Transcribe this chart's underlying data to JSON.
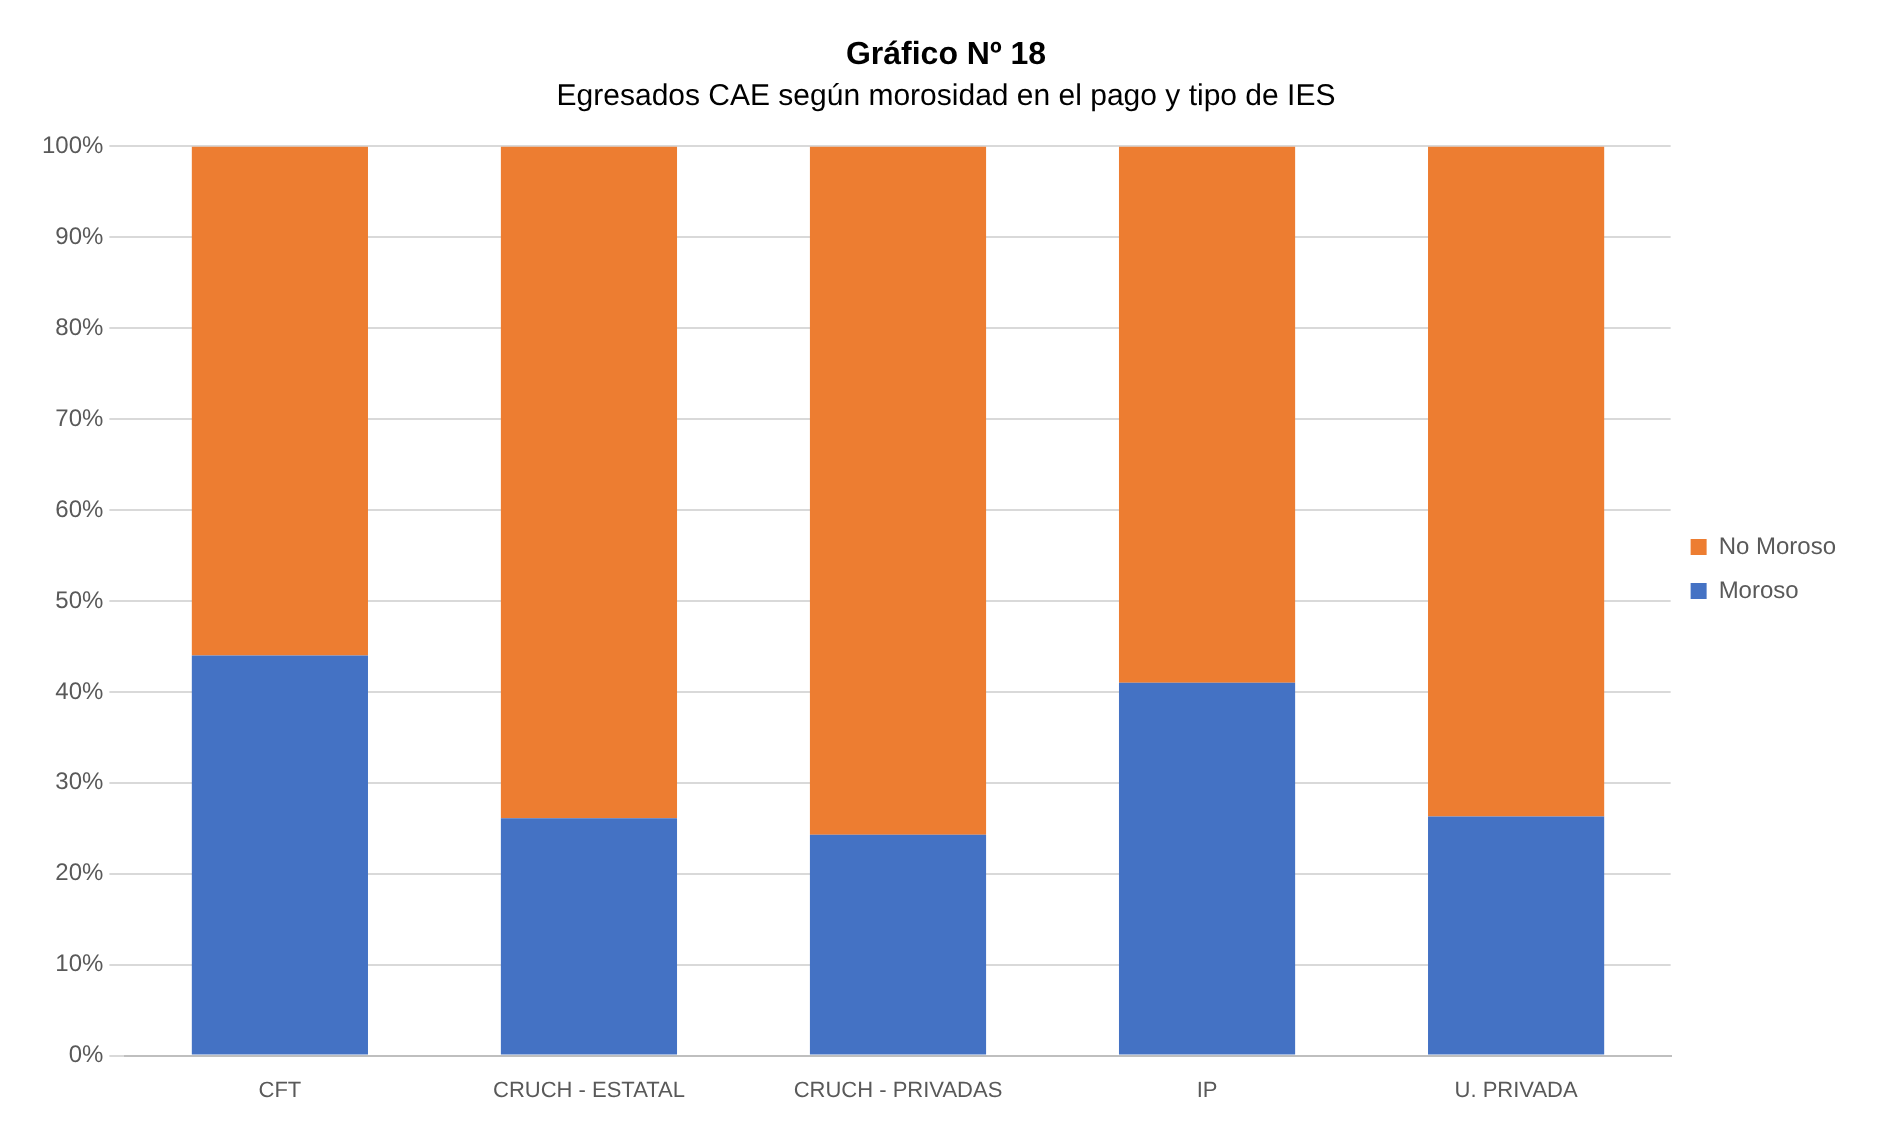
{
  "chart_data": {
    "type": "bar",
    "title": "Gráfico Nº 18",
    "subtitle": "Egresados CAE según morosidad en el pago y tipo de IES",
    "categories": [
      "CFT",
      "CRUCH - ESTATAL",
      "CRUCH - PRIVADAS",
      "IP",
      "U. PRIVADA"
    ],
    "series": [
      {
        "name": "Moroso",
        "color": "#4472c4",
        "values": [
          44,
          26.1,
          24.3,
          41,
          26.3
        ]
      },
      {
        "name": "No Moroso",
        "color": "#ed7d31",
        "values": [
          56,
          73.9,
          75.7,
          59,
          73.7
        ]
      }
    ],
    "stacked": true,
    "ylim": [
      0,
      100
    ],
    "yticks": [
      {
        "value": 0,
        "label": "0%"
      },
      {
        "value": 10,
        "label": "10%"
      },
      {
        "value": 20,
        "label": "20%"
      },
      {
        "value": 30,
        "label": "30%"
      },
      {
        "value": 40,
        "label": "40%"
      },
      {
        "value": 50,
        "label": "50%"
      },
      {
        "value": 60,
        "label": "60%"
      },
      {
        "value": 70,
        "label": "70%"
      },
      {
        "value": 80,
        "label": "80%"
      },
      {
        "value": 90,
        "label": "90%"
      },
      {
        "value": 100,
        "label": "100%"
      }
    ],
    "grid": "y",
    "legend": "right"
  }
}
